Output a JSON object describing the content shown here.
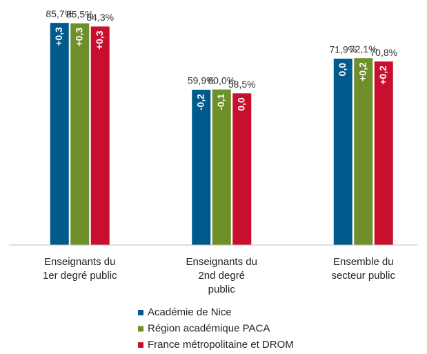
{
  "chart_data": {
    "type": "bar",
    "categories": [
      "Enseignants du 1er degré public",
      "Enseignants du 2nd degré public",
      "Ensemble du secteur public"
    ],
    "series": [
      {
        "name": "Académie de Nice",
        "color": "#005a8c",
        "values": [
          85.7,
          59.9,
          71.9
        ],
        "value_labels": [
          "85,7%",
          "59,9%",
          "71,9%"
        ],
        "delta_labels": [
          "+0,3",
          "-0,2",
          "0,0"
        ]
      },
      {
        "name": "Région académique PACA",
        "color": "#6e8f2a",
        "values": [
          85.5,
          60.0,
          72.1
        ],
        "value_labels": [
          "85,5%",
          "60,0%",
          "72,1%"
        ],
        "delta_labels": [
          "+0,3",
          "-0,1",
          "+0,2"
        ]
      },
      {
        "name": "France métropolitaine et DROM",
        "color": "#c8102e",
        "values": [
          84.3,
          58.5,
          70.8
        ],
        "value_labels": [
          "84,3%",
          "58,5%",
          "70,8%"
        ],
        "delta_labels": [
          "+0,3",
          "0,0",
          "+0,2"
        ]
      }
    ],
    "ylim": [
      0,
      90
    ]
  }
}
